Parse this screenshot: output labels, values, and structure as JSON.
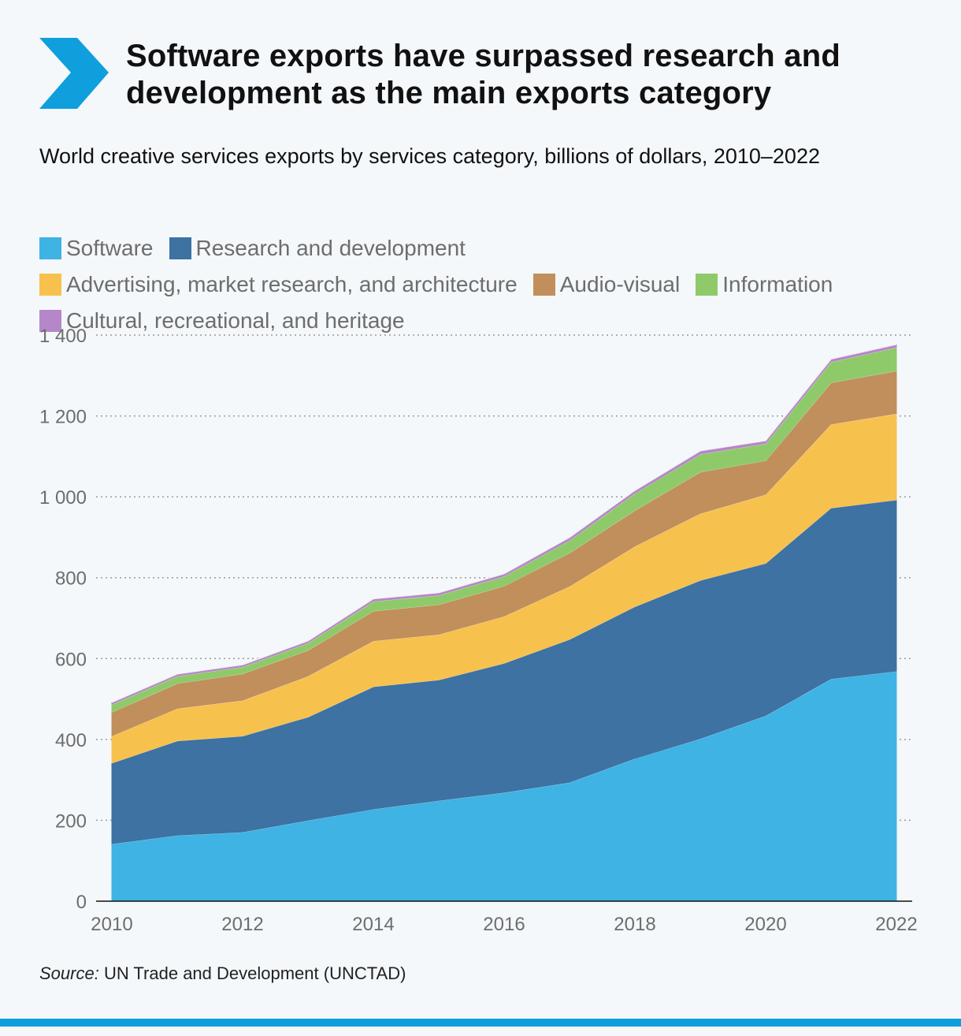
{
  "header": {
    "title": "Software exports have surpassed research and development as the main exports category",
    "subtitle": "World creative services exports by services category, billions of dollars, 2010–2022",
    "accent_color": "#0f9fdc"
  },
  "footer": {
    "source_label": "Source:",
    "source_text": " UN Trade and Development (UNCTAD)"
  },
  "chart_data": {
    "type": "area",
    "stacked": true,
    "x": [
      2010,
      2011,
      2012,
      2013,
      2014,
      2015,
      2016,
      2017,
      2018,
      2019,
      2020,
      2021,
      2022
    ],
    "xticks": [
      "2010",
      "2012",
      "2014",
      "2016",
      "2018",
      "2020",
      "2022"
    ],
    "xtick_values": [
      2010,
      2012,
      2014,
      2016,
      2018,
      2020,
      2022
    ],
    "yticks": [
      "0",
      "200",
      "400",
      "600",
      "800",
      "1 000",
      "1 200",
      "1 400"
    ],
    "ytick_values": [
      0,
      200,
      400,
      600,
      800,
      1000,
      1200,
      1400
    ],
    "ylim": [
      0,
      1400
    ],
    "grid": true,
    "legend_position": "top",
    "series": [
      {
        "name": "Software",
        "color": "#3eb3e4",
        "values": [
          142,
          163,
          171,
          200,
          228,
          249,
          269,
          294,
          353,
          402,
          459,
          550,
          569
        ]
      },
      {
        "name": "Research and development",
        "color": "#3d72a2",
        "values": [
          200,
          234,
          238,
          256,
          303,
          299,
          320,
          354,
          376,
          392,
          377,
          423,
          424
        ]
      },
      {
        "name": "Advertising, market research, and architecture",
        "color": "#f7c14e",
        "values": [
          67,
          80,
          88,
          101,
          113,
          112,
          116,
          131,
          149,
          165,
          170,
          207,
          213
        ]
      },
      {
        "name": "Audio-visual",
        "color": "#c08f5c",
        "values": [
          59,
          62,
          66,
          64,
          74,
          74,
          75,
          83,
          89,
          103,
          84,
          103,
          106
        ]
      },
      {
        "name": "Information",
        "color": "#8fca6a",
        "values": [
          19,
          18,
          17,
          18,
          24,
          23,
          24,
          31,
          42,
          44,
          42,
          51,
          58
        ]
      },
      {
        "name": "Cultural, recreational, and heritage",
        "color": "#b587c8",
        "values": [
          5,
          5,
          5,
          5,
          6,
          6,
          6,
          7,
          7,
          8,
          7,
          7,
          7
        ]
      }
    ]
  }
}
